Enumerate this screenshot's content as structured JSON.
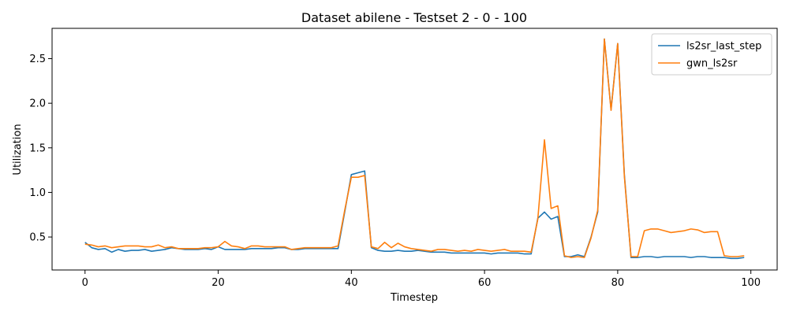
{
  "chart_data": {
    "type": "line",
    "title": "Dataset abilene - Testset 2 - 0 - 100",
    "xlabel": "Timestep",
    "ylabel": "Utilization",
    "xlim": [
      -4.95,
      103.95
    ],
    "ylim": [
      0.13,
      2.84
    ],
    "xticks": [
      0,
      20,
      40,
      60,
      80,
      100
    ],
    "yticks": [
      0.5,
      1.0,
      1.5,
      2.0,
      2.5
    ],
    "xtick_labels": [
      "0",
      "20",
      "40",
      "60",
      "80",
      "100"
    ],
    "ytick_labels": [
      "0.5",
      "1.0",
      "1.5",
      "2.0",
      "2.5"
    ],
    "grid": false,
    "legend_position": "top-right",
    "series": [
      {
        "name": "ls2sr_last_step",
        "color": "#1f77b4",
        "values": [
          0.44,
          0.38,
          0.36,
          0.37,
          0.33,
          0.36,
          0.34,
          0.35,
          0.35,
          0.36,
          0.34,
          0.35,
          0.36,
          0.38,
          0.37,
          0.36,
          0.36,
          0.36,
          0.37,
          0.36,
          0.39,
          0.36,
          0.36,
          0.36,
          0.36,
          0.37,
          0.37,
          0.37,
          0.37,
          0.38,
          0.38,
          0.36,
          0.36,
          0.37,
          0.37,
          0.37,
          0.37,
          0.37,
          0.37,
          0.78,
          1.2,
          1.22,
          1.24,
          0.38,
          0.35,
          0.34,
          0.34,
          0.35,
          0.34,
          0.34,
          0.35,
          0.34,
          0.33,
          0.33,
          0.33,
          0.32,
          0.32,
          0.32,
          0.32,
          0.32,
          0.32,
          0.31,
          0.32,
          0.32,
          0.32,
          0.32,
          0.31,
          0.31,
          0.71,
          0.78,
          0.7,
          0.73,
          0.28,
          0.28,
          0.3,
          0.28,
          0.5,
          0.78,
          2.72,
          1.93,
          2.67,
          1.2,
          0.27,
          0.27,
          0.28,
          0.28,
          0.27,
          0.28,
          0.28,
          0.28,
          0.28,
          0.27,
          0.28,
          0.28,
          0.27,
          0.27,
          0.27,
          0.26,
          0.26,
          0.27
        ]
      },
      {
        "name": "gwn_ls2sr",
        "color": "#ff7f0e",
        "values": [
          0.42,
          0.41,
          0.39,
          0.4,
          0.38,
          0.39,
          0.4,
          0.4,
          0.4,
          0.39,
          0.39,
          0.41,
          0.38,
          0.39,
          0.37,
          0.37,
          0.37,
          0.37,
          0.38,
          0.38,
          0.39,
          0.45,
          0.4,
          0.39,
          0.37,
          0.4,
          0.4,
          0.39,
          0.39,
          0.39,
          0.39,
          0.36,
          0.37,
          0.38,
          0.38,
          0.38,
          0.38,
          0.38,
          0.4,
          0.8,
          1.17,
          1.17,
          1.19,
          0.39,
          0.37,
          0.44,
          0.38,
          0.43,
          0.39,
          0.37,
          0.36,
          0.35,
          0.34,
          0.36,
          0.36,
          0.35,
          0.34,
          0.35,
          0.34,
          0.36,
          0.35,
          0.34,
          0.35,
          0.36,
          0.34,
          0.34,
          0.34,
          0.33,
          0.7,
          1.59,
          0.82,
          0.85,
          0.29,
          0.27,
          0.28,
          0.27,
          0.49,
          0.8,
          2.72,
          1.92,
          2.67,
          1.18,
          0.28,
          0.28,
          0.57,
          0.59,
          0.59,
          0.57,
          0.55,
          0.56,
          0.57,
          0.59,
          0.58,
          0.55,
          0.56,
          0.56,
          0.29,
          0.28,
          0.28,
          0.29
        ]
      }
    ]
  }
}
